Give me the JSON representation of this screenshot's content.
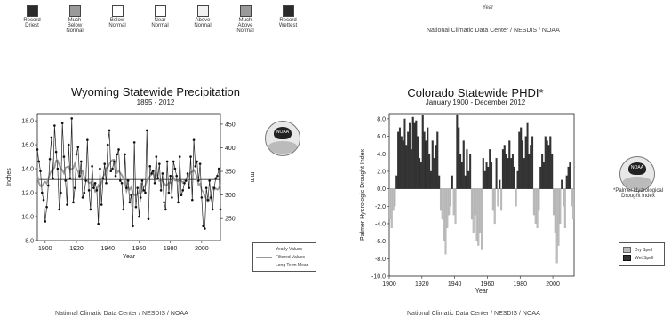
{
  "top_legend": {
    "items": [
      {
        "label": "Record\nDriest",
        "color": "#2b2b2b"
      },
      {
        "label": "Much\nBelow\nNormal",
        "color": "#9a9a9a"
      },
      {
        "label": "Below\nNormal",
        "color": "#ffffff"
      },
      {
        "label": "Near\nNormal",
        "color": "#ffffff"
      },
      {
        "label": "Above\nNormal",
        "color": "#f2f2f2"
      },
      {
        "label": "Much\nAbove\nNormal",
        "color": "#9a9a9a"
      },
      {
        "label": "Record\nWettest",
        "color": "#2b2b2b"
      }
    ]
  },
  "top_right": {
    "year_label": "Year",
    "credit": "National Climatic Data Center / NESDIS / NOAA"
  },
  "left_credit": "National Climatic Data Center / NESDIS / NOAA",
  "right_credit": "National Climatic Data Center / NESDIS / NOAA",
  "logo_text": "NOAA",
  "phdi_note": "*Palmer Hydrological\nDrought Index",
  "chart_data": [
    {
      "type": "line",
      "title": "Wyoming Statewide Precipitation",
      "subtitle": "1895 - 2012",
      "xlabel": "Year",
      "ylabel": "Inches",
      "ylabel_right": "mm",
      "xlim": [
        1895,
        2012
      ],
      "ylim": [
        8.0,
        18.6
      ],
      "xticks": [
        1900,
        1920,
        1940,
        1960,
        1980,
        2000
      ],
      "yticks": [
        8.0,
        10.0,
        12.0,
        14.0,
        16.0,
        18.0
      ],
      "yticks_right": [
        250,
        300,
        350,
        400,
        450
      ],
      "grid": false,
      "legend_position": "right",
      "long_term_mean": 13.1,
      "series": [
        {
          "name": "Yearly Values",
          "x": [
            1895,
            1896,
            1897,
            1898,
            1899,
            1900,
            1901,
            1902,
            1903,
            1904,
            1905,
            1906,
            1907,
            1908,
            1909,
            1910,
            1911,
            1912,
            1913,
            1914,
            1915,
            1916,
            1917,
            1918,
            1919,
            1920,
            1921,
            1922,
            1923,
            1924,
            1925,
            1926,
            1927,
            1928,
            1929,
            1930,
            1931,
            1932,
            1933,
            1934,
            1935,
            1936,
            1937,
            1938,
            1939,
            1940,
            1941,
            1942,
            1943,
            1944,
            1945,
            1946,
            1947,
            1948,
            1949,
            1950,
            1951,
            1952,
            1953,
            1954,
            1955,
            1956,
            1957,
            1958,
            1959,
            1960,
            1961,
            1962,
            1963,
            1964,
            1965,
            1966,
            1967,
            1968,
            1969,
            1970,
            1971,
            1972,
            1973,
            1974,
            1975,
            1976,
            1977,
            1978,
            1979,
            1980,
            1981,
            1982,
            1983,
            1984,
            1985,
            1986,
            1987,
            1988,
            1989,
            1990,
            1991,
            1992,
            1993,
            1994,
            1995,
            1996,
            1997,
            1998,
            1999,
            2000,
            2001,
            2002,
            2003,
            2004,
            2005,
            2006,
            2007,
            2008,
            2009,
            2010,
            2011,
            2012
          ],
          "values": [
            15.6,
            14.6,
            13.8,
            12.0,
            11.4,
            9.6,
            10.8,
            12.6,
            14.8,
            16.6,
            13.2,
            17.6,
            15.4,
            14.0,
            10.6,
            12.0,
            17.8,
            15.0,
            13.0,
            11.0,
            16.0,
            13.2,
            18.2,
            11.2,
            12.4,
            15.2,
            15.8,
            13.4,
            14.6,
            11.6,
            12.0,
            13.0,
            16.4,
            12.2,
            10.6,
            14.2,
            12.4,
            12.8,
            12.2,
            9.4,
            14.0,
            11.0,
            13.2,
            14.4,
            12.8,
            16.0,
            17.2,
            13.8,
            14.0,
            14.6,
            13.4,
            15.2,
            15.6,
            13.0,
            12.8,
            10.6,
            15.2,
            12.4,
            13.0,
            11.2,
            11.8,
            9.2,
            16.2,
            10.8,
            12.4,
            10.0,
            11.6,
            13.0,
            12.2,
            12.0,
            17.2,
            9.8,
            14.2,
            13.6,
            13.8,
            12.8,
            15.0,
            13.2,
            14.4,
            12.2,
            13.6,
            11.2,
            10.6,
            14.6,
            12.0,
            13.4,
            11.6,
            14.6,
            14.0,
            13.4,
            11.2,
            15.0,
            11.8,
            12.2,
            12.8,
            13.0,
            13.6,
            12.4,
            15.0,
            11.4,
            16.4,
            14.2,
            14.6,
            13.0,
            14.4,
            11.6,
            9.2,
            9.0,
            12.4,
            11.4,
            13.0,
            11.6,
            10.6,
            12.4,
            13.2,
            13.4,
            14.0,
            10.6
          ]
        },
        {
          "name": "Filtered Values"
        },
        {
          "name": "Long Term Mean"
        }
      ]
    },
    {
      "type": "bar",
      "title": "Colorado Statewide PHDI*",
      "subtitle": "January 1900 - December 2012",
      "xlabel": "Year",
      "ylabel": "Palmer Hydrologic Drought Index",
      "xlim": [
        1900,
        2013
      ],
      "ylim": [
        -10.0,
        8.6
      ],
      "xticks": [
        1900,
        1920,
        1940,
        1960,
        1980,
        2000
      ],
      "yticks": [
        -10.0,
        -8.0,
        -6.0,
        -4.0,
        -2.0,
        0.0,
        2.0,
        4.0,
        6.0,
        8.0
      ],
      "grid": false,
      "legend_position": "right",
      "series": [
        {
          "name": "Dry Spell"
        },
        {
          "name": "Wet Spell"
        }
      ],
      "x": [
        1900,
        1901,
        1902,
        1903,
        1904,
        1905,
        1906,
        1907,
        1908,
        1909,
        1910,
        1911,
        1912,
        1913,
        1914,
        1915,
        1916,
        1917,
        1918,
        1919,
        1920,
        1921,
        1922,
        1923,
        1924,
        1925,
        1926,
        1927,
        1928,
        1929,
        1930,
        1931,
        1932,
        1933,
        1934,
        1935,
        1936,
        1937,
        1938,
        1939,
        1940,
        1941,
        1942,
        1943,
        1944,
        1945,
        1946,
        1947,
        1948,
        1949,
        1950,
        1951,
        1952,
        1953,
        1954,
        1955,
        1956,
        1957,
        1958,
        1959,
        1960,
        1961,
        1962,
        1963,
        1964,
        1965,
        1966,
        1967,
        1968,
        1969,
        1970,
        1971,
        1972,
        1973,
        1974,
        1975,
        1976,
        1977,
        1978,
        1979,
        1980,
        1981,
        1982,
        1983,
        1984,
        1985,
        1986,
        1987,
        1988,
        1989,
        1990,
        1991,
        1992,
        1993,
        1994,
        1995,
        1996,
        1997,
        1998,
        1999,
        2000,
        2001,
        2002,
        2003,
        2004,
        2005,
        2006,
        2007,
        2008,
        2009,
        2010,
        2011,
        2012
      ],
      "values": [
        -3.5,
        -4.5,
        -2.5,
        -2.0,
        1.5,
        6.5,
        7.0,
        6.0,
        5.5,
        8.0,
        5.0,
        6.5,
        7.5,
        4.5,
        8.2,
        7.5,
        7.8,
        6.0,
        3.5,
        3.0,
        8.4,
        6.5,
        5.5,
        7.0,
        4.0,
        2.0,
        5.5,
        3.5,
        5.0,
        6.5,
        1.5,
        -2.5,
        -3.5,
        -6.0,
        -7.5,
        -4.5,
        -3.0,
        -2.0,
        1.5,
        -3.0,
        -4.0,
        8.5,
        7.0,
        4.0,
        3.0,
        5.5,
        1.5,
        4.5,
        2.0,
        4.0,
        -3.5,
        -5.0,
        -3.0,
        -6.0,
        -6.5,
        -5.0,
        -7.0,
        3.5,
        2.0,
        3.0,
        2.5,
        4.5,
        3.0,
        -2.5,
        -4.0,
        3.5,
        -2.0,
        1.0,
        -2.5,
        4.5,
        5.0,
        4.0,
        3.5,
        5.5,
        3.5,
        4.0,
        2.5,
        -2.0,
        2.0,
        6.5,
        7.0,
        5.5,
        3.5,
        6.0,
        7.5,
        4.0,
        5.0,
        6.0,
        -3.0,
        -4.0,
        -4.5,
        -2.5,
        2.5,
        4.0,
        3.0,
        6.0,
        5.5,
        5.0,
        6.0,
        4.0,
        -3.0,
        -5.0,
        -8.5,
        -6.5,
        -4.0,
        1.0,
        -2.0,
        -4.5,
        1.5,
        2.5,
        3.0,
        -2.0,
        -3.5
      ]
    }
  ]
}
